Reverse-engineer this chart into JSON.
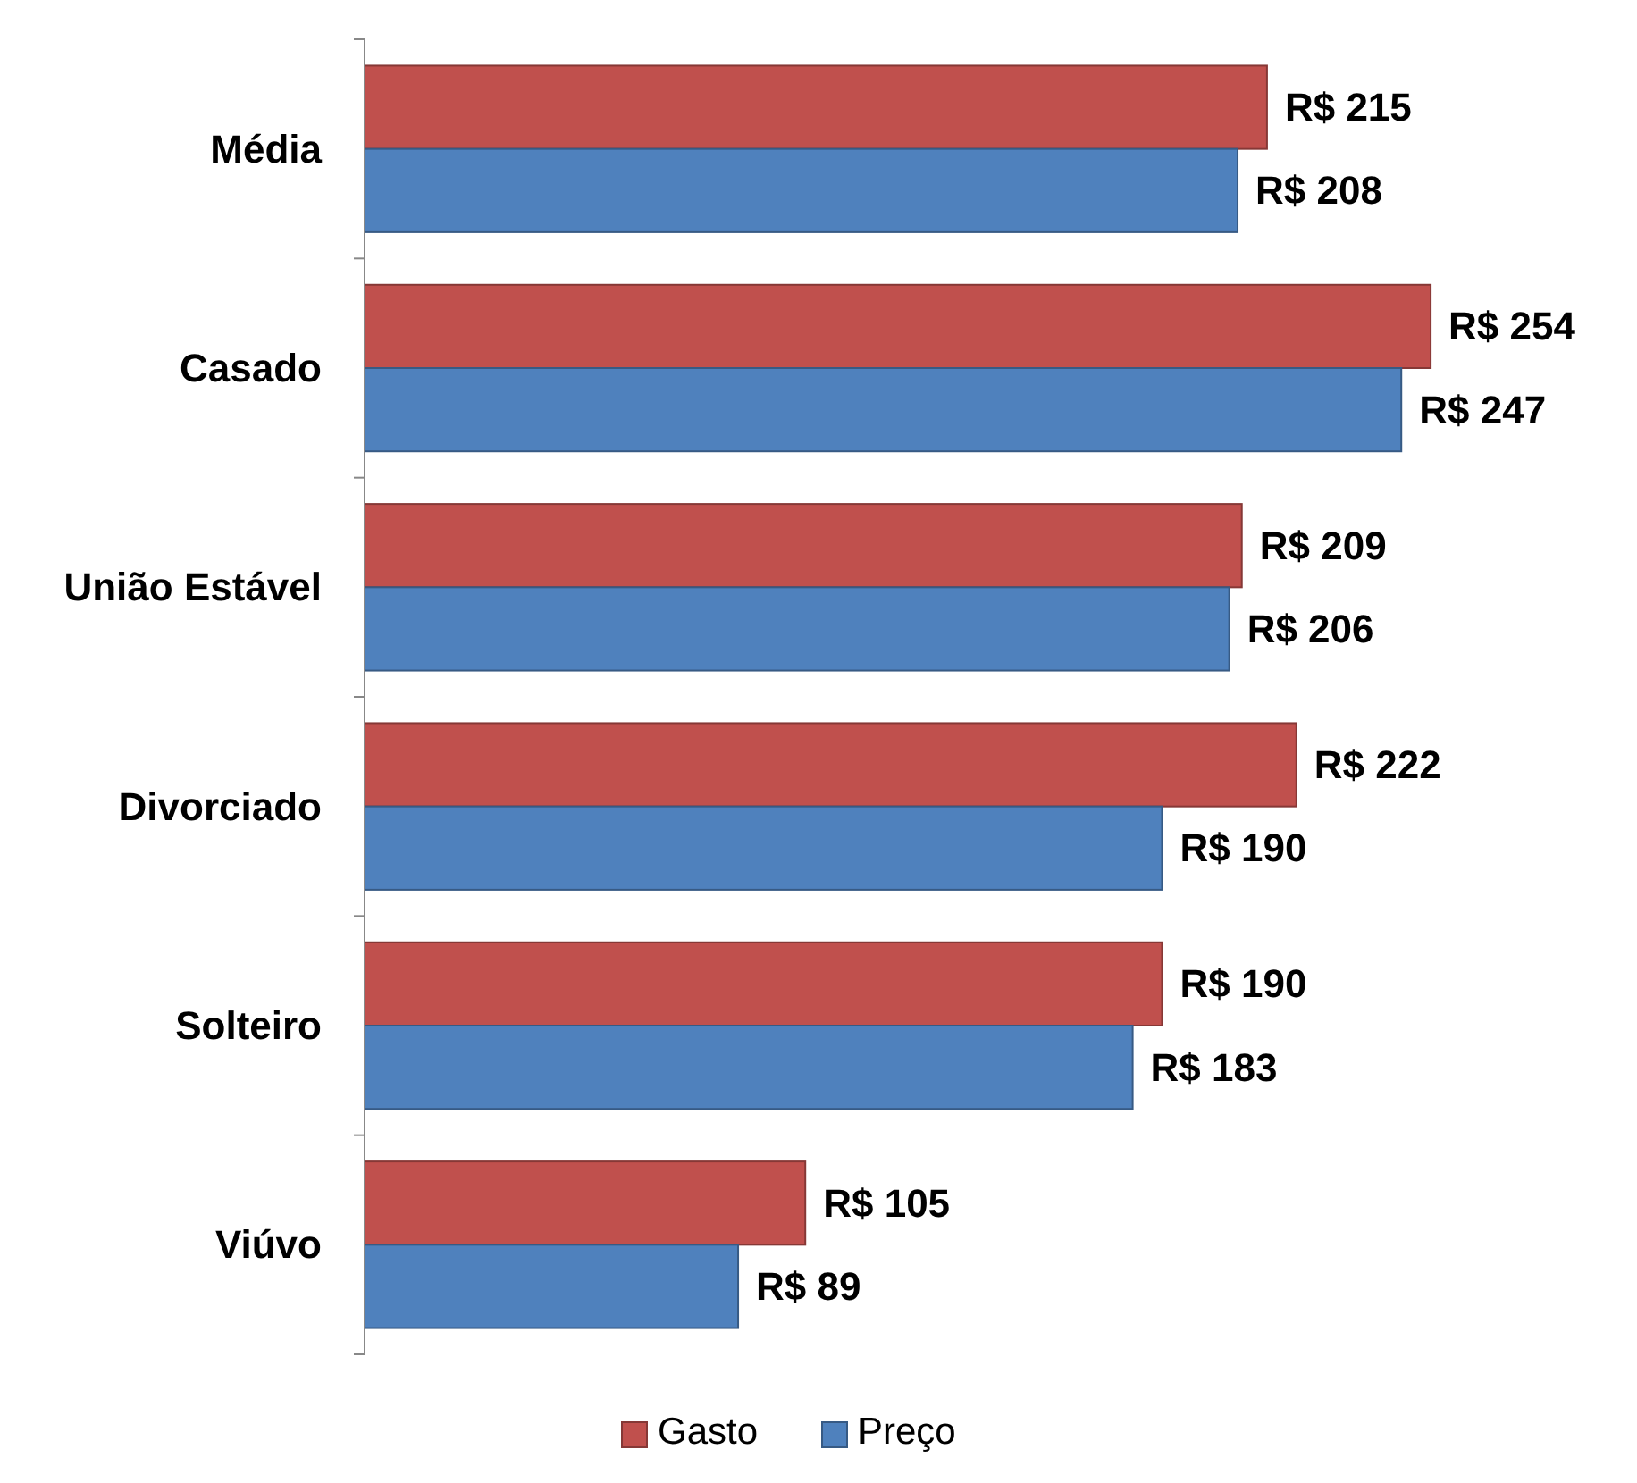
{
  "chart_data": {
    "type": "bar",
    "orientation": "horizontal",
    "categories": [
      "Média",
      "Casado",
      "União Estável",
      "Divorciado",
      "Solteiro",
      "Viúvo"
    ],
    "series": [
      {
        "name": "Gasto",
        "color": "#c0504d",
        "values": [
          215,
          254,
          209,
          222,
          190,
          105
        ],
        "value_labels": [
          "R$ 215",
          "R$ 254",
          "R$ 209",
          "R$ 222",
          "R$ 190",
          "R$ 105"
        ]
      },
      {
        "name": "Preço",
        "color": "#4f81bd",
        "values": [
          208,
          247,
          206,
          190,
          183,
          89
        ],
        "value_labels": [
          "R$ 208",
          "R$ 247",
          "R$ 206",
          "R$ 190",
          "R$ 183",
          "R$ 89"
        ]
      }
    ],
    "tick_labels": "y",
    "legend": "bottom"
  }
}
